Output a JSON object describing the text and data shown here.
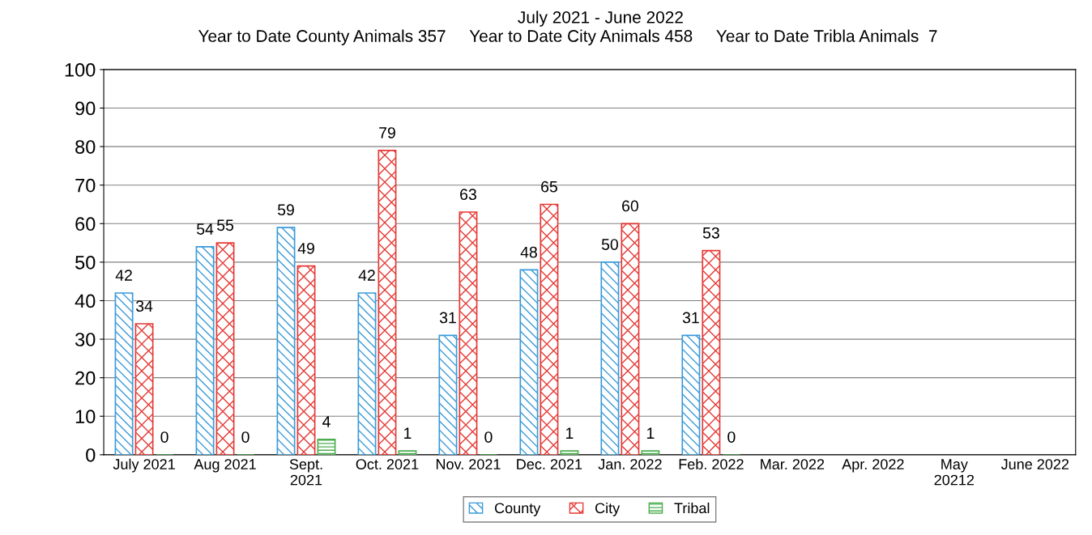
{
  "chart_data": {
    "type": "bar",
    "title": "July 2021 - June 2022",
    "subtitle": "Year to Date County Animals 357     Year to Date City Animals 458     Year to Date Tribla Animals  7",
    "categories": [
      "July 2021",
      "Aug 2021",
      "Sept.\n2021",
      "Oct. 2021",
      "Nov. 2021",
      "Dec. 2021",
      "Jan. 2022",
      "Feb. 2022",
      "Mar. 2022",
      "Apr. 2022",
      "May\n20212",
      "June 2022"
    ],
    "series": [
      {
        "name": "County",
        "color": "#3a9ad9",
        "values": [
          42,
          54,
          59,
          42,
          31,
          48,
          50,
          31,
          null,
          null,
          null,
          null
        ]
      },
      {
        "name": "City",
        "color": "#e53935",
        "values": [
          34,
          55,
          49,
          79,
          63,
          65,
          60,
          53,
          null,
          null,
          null,
          null
        ]
      },
      {
        "name": "Tribal",
        "color": "#4caf50",
        "values": [
          0,
          0,
          4,
          1,
          0,
          1,
          1,
          0,
          null,
          null,
          null,
          null
        ]
      }
    ],
    "ylim": [
      0,
      100
    ],
    "yticks": [
      0,
      10,
      20,
      30,
      40,
      50,
      60,
      70,
      80,
      90,
      100
    ],
    "grid": "y",
    "legend": "bottom",
    "data_labels": true
  }
}
